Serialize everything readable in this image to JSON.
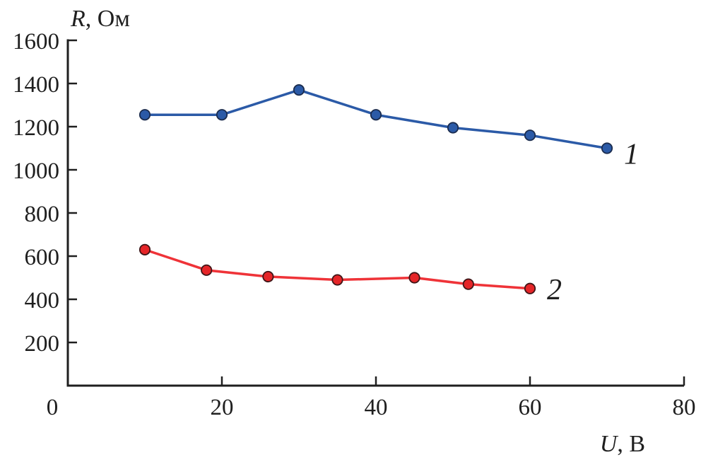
{
  "figure": {
    "background": "#ffffff",
    "axis_color": "#1f1f1f",
    "text_color": "#1f1f1f"
  },
  "chart_data": {
    "type": "line",
    "title": "",
    "xlabel": {
      "italic": "U",
      "rest": ", В"
    },
    "ylabel": {
      "italic": "R",
      "rest": ", Ом"
    },
    "xlim": [
      0,
      80
    ],
    "ylim": [
      0,
      1600
    ],
    "x_ticks": [
      0,
      20,
      40,
      60,
      80
    ],
    "y_ticks": [
      200,
      400,
      600,
      800,
      1000,
      1200,
      1400,
      1600
    ],
    "grid": false,
    "legend_position": "inline-end-labels",
    "series": [
      {
        "name": "1",
        "label": "1",
        "line_color": "#2b5aa7",
        "marker_fill": "#2b5aa7",
        "marker_edge": "#1b2c4e",
        "x": [
          10,
          20,
          30,
          40,
          50,
          60,
          70
        ],
        "y": [
          1255,
          1255,
          1370,
          1255,
          1195,
          1160,
          1100
        ]
      },
      {
        "name": "2",
        "label": "2",
        "line_color": "#ef3338",
        "marker_fill": "#e52528",
        "marker_edge": "#3f1517",
        "x": [
          10,
          18,
          26,
          35,
          45,
          52,
          60
        ],
        "y": [
          630,
          535,
          505,
          490,
          500,
          470,
          450
        ]
      }
    ]
  }
}
